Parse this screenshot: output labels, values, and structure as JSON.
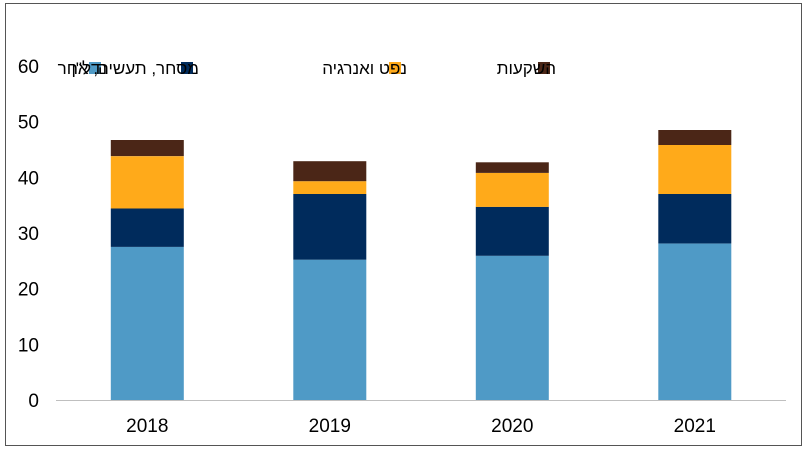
{
  "chart_data": {
    "type": "bar",
    "stacked": true,
    "categories": [
      "2018",
      "2019",
      "2020",
      "2021"
    ],
    "series": [
      {
        "name": "נדל\"ן",
        "color": "#4F9AC6",
        "values": [
          27.5,
          25.2,
          25.9,
          28.1
        ]
      },
      {
        "name": "מסחר, תעשיה, אחר",
        "color": "#002B5C",
        "values": [
          6.9,
          11.8,
          8.8,
          8.9
        ]
      },
      {
        "name": "נפט ואנרגיה",
        "color": "#FFAA1A",
        "values": [
          9.4,
          2.3,
          6.1,
          8.8
        ]
      },
      {
        "name": "השקעות",
        "color": "#4B2617",
        "values": [
          2.9,
          3.6,
          1.9,
          2.7
        ]
      }
    ],
    "yticks": [
      "0",
      "10",
      "20",
      "30",
      "40",
      "50",
      "60"
    ],
    "ylim": [
      0,
      60
    ],
    "title": "",
    "xlabel": "",
    "ylabel": "",
    "grid": false,
    "legend_position": "top"
  }
}
